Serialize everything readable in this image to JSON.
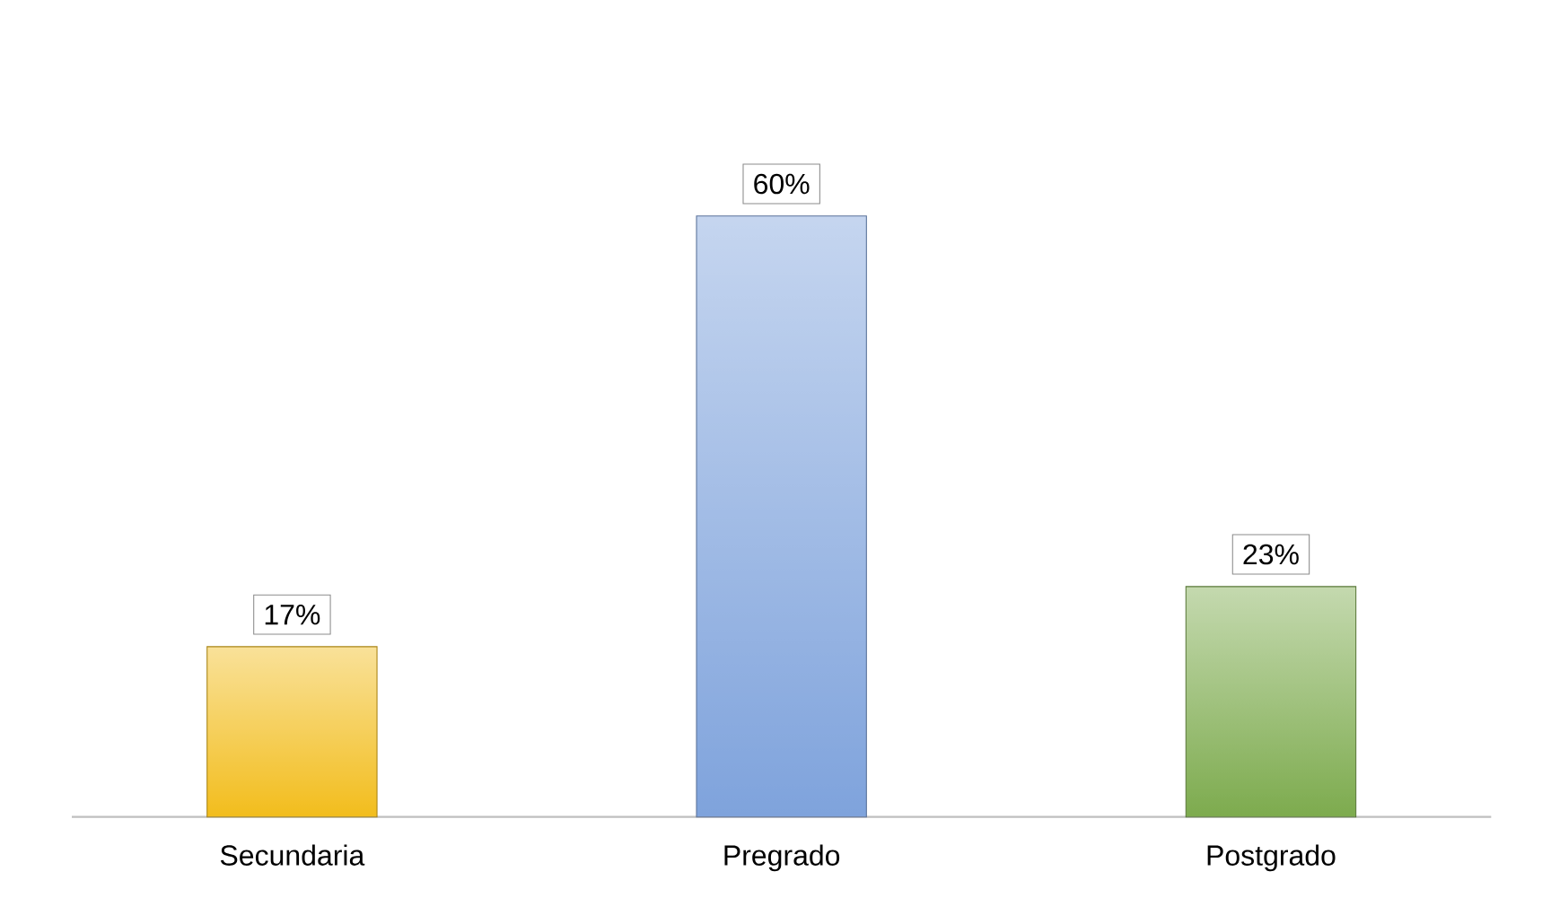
{
  "chart_data": {
    "type": "bar",
    "categories": [
      "Secundaria",
      "Pregrado",
      "Postgrado"
    ],
    "values": [
      17,
      60,
      23
    ],
    "value_labels": [
      "17%",
      "60%",
      "23%"
    ],
    "colors": [
      "#f2bd1d",
      "#7fa3dc",
      "#7dab4e"
    ]
  }
}
